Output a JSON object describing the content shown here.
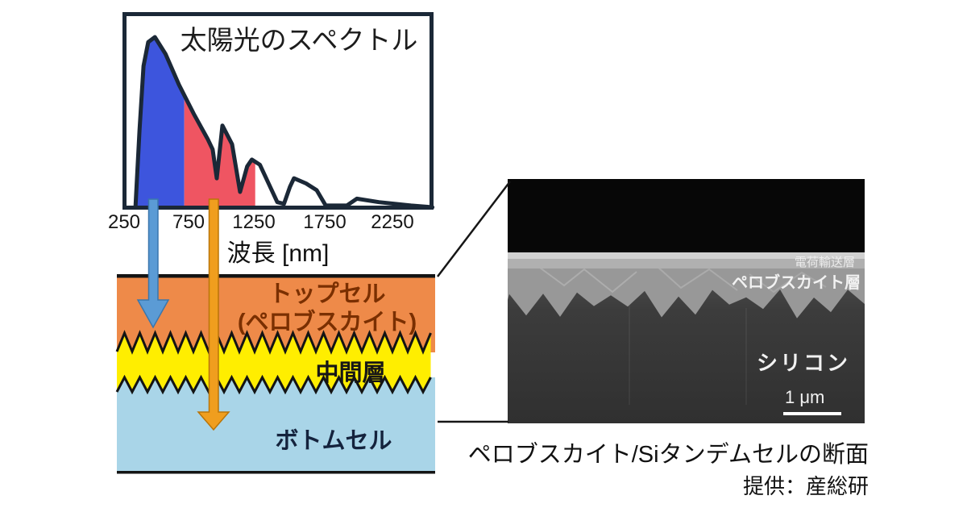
{
  "colors": {
    "ink": "#1b2837",
    "spectrum-blue": "#3d55dd",
    "spectrum-red": "#ef5562",
    "arrow-blue": "#5b9bd5",
    "arrow-blue-edge": "#3a76ad",
    "arrow-orange": "#f09e1e",
    "arrow-orange-edge": "#b97509",
    "layer-orange": "#ee8a49",
    "layer-yellow": "#ffee00",
    "layer-blue": "#a9d5e8",
    "top-label": "#7a2f00",
    "mid-label": "#161616",
    "bottom-label": "#14233d",
    "line-black": "#141414"
  },
  "spectrum_chart": {
    "title": "太陽光のスペクトル",
    "xlabel": "波長 [nm]",
    "x_ticks": [
      "250",
      "750",
      "1250",
      "1750",
      "2250"
    ]
  },
  "chart_data": {
    "type": "area",
    "title": "太陽光のスペクトル",
    "xlabel": "波長 [nm]",
    "x_unit": "nm",
    "xlim": [
      250,
      2570
    ],
    "x_ticks": [
      250,
      750,
      1250,
      1750,
      2250
    ],
    "grid": false,
    "legend": false,
    "series": [
      {
        "name": "solar-spectrum-relative-intensity",
        "x": [
          335,
          365,
          395,
          430,
          480,
          560,
          660,
          770,
          875,
          912,
          943,
          985,
          1057,
          1117,
          1170,
          1205,
          1265,
          1330,
          1395,
          1445,
          1490,
          1520,
          1610,
          1690,
          1757,
          1915,
          1990,
          2155,
          2395,
          2555
        ],
        "y": [
          0,
          0.45,
          0.83,
          0.97,
          1.0,
          0.9,
          0.72,
          0.55,
          0.4,
          0.34,
          0.17,
          0.48,
          0.37,
          0.09,
          0.24,
          0.28,
          0.25,
          0.14,
          0.03,
          0.02,
          0.12,
          0.17,
          0.14,
          0.1,
          0.01,
          0.01,
          0.05,
          0.03,
          0.01,
          0.0
        ]
      }
    ],
    "regions": [
      {
        "name": "absorbed-by-top-cell",
        "range_nm": [
          335,
          700
        ],
        "color": "#3d55dd"
      },
      {
        "name": "absorbed-by-bottom-cell",
        "range_nm": [
          700,
          1230
        ],
        "color": "#ef5562"
      }
    ]
  },
  "cell_stack": {
    "top_cell_line1": "トップセル",
    "top_cell_line2": "(ペロブスカイト)",
    "middle_layer": "中間層",
    "bottom_cell": "ボトムセル"
  },
  "sem_image": {
    "label_transport": "電荷輸送層",
    "label_perovskite": "ペロブスカイト層",
    "label_silicon": "シリコン",
    "scale_text": "1 μm"
  },
  "caption": {
    "line1": "ペロブスカイト/Siタンデムセルの断面",
    "line2": "提供：産総研"
  }
}
